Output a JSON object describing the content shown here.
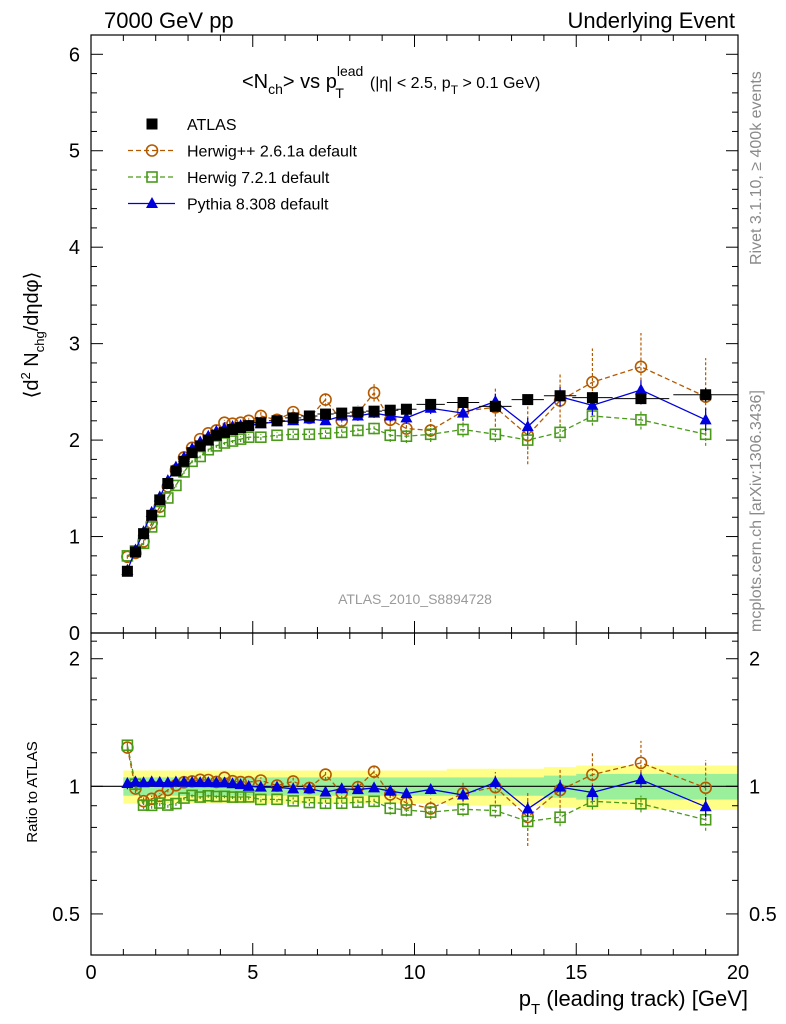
{
  "header": {
    "left": "7000 GeV pp",
    "right": "Underlying Event"
  },
  "side": {
    "rivet": "Rivet 3.1.10, ≥ 400k events",
    "mcplots": "mcplots.cern.ch [arXiv:1306.3436]"
  },
  "chart_data": {
    "type": "line",
    "title_parts": {
      "a": "<N",
      "a_sub": "ch",
      "b": "> vs p",
      "b_sup": "lead",
      "b_sub": "T",
      "cut1": "(|η| < 2.5, p",
      "cut_sub": "T",
      "cut2": " > 0.1 GeV)"
    },
    "analysis_tag": "ATLAS_2010_S8894728",
    "ylabel_parts": {
      "a": "⟨d",
      "sup": "2",
      "b": " N",
      "sub": "chg",
      "c": "/dηdφ⟩"
    },
    "ratio_ylabel": "Ratio to ATLAS",
    "xlabel_parts": {
      "a": "p",
      "sub": "T",
      "b": " (leading track) [GeV]"
    },
    "xlim": [
      0,
      20
    ],
    "ylim_main": [
      0,
      6.2
    ],
    "ylim_ratio": [
      0.4,
      2.3
    ],
    "x_ticks": [
      0,
      5,
      10,
      15,
      20
    ],
    "x_tick_labels": [
      "0",
      "5",
      "10",
      "15",
      "20"
    ],
    "y_main_ticks": [
      0,
      1,
      2,
      3,
      4,
      5,
      6
    ],
    "y_main_tick_labels": [
      "0",
      "1",
      "2",
      "3",
      "4",
      "5",
      "6"
    ],
    "y_ratio_ticks": [
      0.5,
      1,
      2
    ],
    "y_ratio_tick_labels": [
      "0.5",
      "1",
      "2"
    ],
    "legend_position": "top-left",
    "x": [
      1.125,
      1.375,
      1.625,
      1.875,
      2.125,
      2.375,
      2.625,
      2.875,
      3.125,
      3.375,
      3.625,
      3.875,
      4.125,
      4.375,
      4.625,
      4.875,
      5.25,
      5.75,
      6.25,
      6.75,
      7.25,
      7.75,
      8.25,
      8.75,
      9.25,
      9.75,
      10.5,
      11.5,
      12.5,
      13.5,
      14.5,
      15.5,
      17.0,
      19.0
    ],
    "series": [
      {
        "name": "ATLAS",
        "color": "#000000",
        "values": [
          0.64,
          0.84,
          1.03,
          1.22,
          1.38,
          1.55,
          1.68,
          1.78,
          1.87,
          1.94,
          2.0,
          2.05,
          2.08,
          2.11,
          2.13,
          2.15,
          2.18,
          2.2,
          2.23,
          2.25,
          2.27,
          2.28,
          2.29,
          2.3,
          2.31,
          2.32,
          2.37,
          2.39,
          2.35,
          2.42,
          2.46,
          2.44,
          2.43,
          2.47
        ],
        "errors": [
          0.02,
          0.02,
          0.02,
          0.02,
          0.02,
          0.02,
          0.02,
          0.02,
          0.02,
          0.02,
          0.02,
          0.02,
          0.02,
          0.02,
          0.02,
          0.02,
          0.02,
          0.02,
          0.02,
          0.02,
          0.02,
          0.03,
          0.03,
          0.03,
          0.03,
          0.03,
          0.03,
          0.04,
          0.04,
          0.05,
          0.05,
          0.06,
          0.06,
          0.07
        ]
      },
      {
        "name": "Herwig++ 2.6.1a default",
        "color": "#b35a00",
        "values": [
          0.79,
          0.83,
          0.95,
          1.14,
          1.31,
          1.52,
          1.69,
          1.82,
          1.92,
          2.01,
          2.07,
          2.1,
          2.18,
          2.17,
          2.18,
          2.2,
          2.25,
          2.21,
          2.29,
          2.23,
          2.42,
          2.2,
          2.28,
          2.49,
          2.21,
          2.12,
          2.1,
          2.3,
          2.34,
          2.05,
          2.41,
          2.6,
          2.76,
          2.45
        ],
        "errors": [
          0.02,
          0.02,
          0.02,
          0.02,
          0.02,
          0.02,
          0.02,
          0.02,
          0.02,
          0.02,
          0.02,
          0.03,
          0.03,
          0.03,
          0.03,
          0.03,
          0.04,
          0.04,
          0.05,
          0.05,
          0.07,
          0.07,
          0.08,
          0.09,
          0.1,
          0.1,
          0.12,
          0.15,
          0.2,
          0.3,
          0.28,
          0.35,
          0.35,
          0.4
        ]
      },
      {
        "name": "Herwig 7.2.1 default",
        "color": "#4a9a1a",
        "values": [
          0.8,
          0.85,
          0.93,
          1.1,
          1.26,
          1.4,
          1.53,
          1.67,
          1.78,
          1.83,
          1.9,
          1.94,
          1.97,
          1.99,
          2.01,
          2.03,
          2.03,
          2.05,
          2.06,
          2.06,
          2.07,
          2.08,
          2.1,
          2.12,
          2.05,
          2.04,
          2.06,
          2.11,
          2.06,
          2.0,
          2.08,
          2.25,
          2.21,
          2.06
        ],
        "errors": [
          0.02,
          0.02,
          0.02,
          0.02,
          0.02,
          0.02,
          0.02,
          0.02,
          0.02,
          0.02,
          0.02,
          0.02,
          0.02,
          0.02,
          0.03,
          0.03,
          0.03,
          0.03,
          0.04,
          0.04,
          0.05,
          0.05,
          0.06,
          0.06,
          0.07,
          0.07,
          0.07,
          0.08,
          0.08,
          0.1,
          0.1,
          0.1,
          0.1,
          0.12
        ]
      },
      {
        "name": "Pythia 8.308 default",
        "color": "#0000dd",
        "values": [
          0.65,
          0.86,
          1.05,
          1.25,
          1.41,
          1.58,
          1.72,
          1.82,
          1.91,
          1.98,
          2.04,
          2.09,
          2.12,
          2.14,
          2.15,
          2.15,
          2.17,
          2.19,
          2.2,
          2.22,
          2.2,
          2.25,
          2.25,
          2.28,
          2.25,
          2.23,
          2.33,
          2.28,
          2.4,
          2.14,
          2.45,
          2.36,
          2.52,
          2.21
        ],
        "errors": [
          0.02,
          0.02,
          0.02,
          0.02,
          0.02,
          0.02,
          0.02,
          0.02,
          0.02,
          0.02,
          0.02,
          0.02,
          0.02,
          0.02,
          0.03,
          0.03,
          0.03,
          0.03,
          0.04,
          0.04,
          0.04,
          0.05,
          0.05,
          0.05,
          0.06,
          0.06,
          0.06,
          0.08,
          0.08,
          0.09,
          0.1,
          0.1,
          0.1,
          0.12
        ]
      }
    ],
    "ratio_bands": {
      "inner_color": "#9af09a",
      "outer_color": "#ffff88",
      "inner": [
        0.05,
        0.05,
        0.05,
        0.05,
        0.05,
        0.05,
        0.05,
        0.05,
        0.05,
        0.05,
        0.05,
        0.05,
        0.05,
        0.05,
        0.05,
        0.05,
        0.05,
        0.05,
        0.05,
        0.05,
        0.05,
        0.05,
        0.05,
        0.05,
        0.05,
        0.05,
        0.05,
        0.05,
        0.05,
        0.05,
        0.06,
        0.07,
        0.07,
        0.07
      ],
      "outer": [
        0.09,
        0.09,
        0.09,
        0.09,
        0.09,
        0.09,
        0.09,
        0.09,
        0.09,
        0.09,
        0.09,
        0.09,
        0.09,
        0.09,
        0.09,
        0.09,
        0.09,
        0.09,
        0.09,
        0.09,
        0.09,
        0.09,
        0.09,
        0.09,
        0.09,
        0.09,
        0.09,
        0.1,
        0.1,
        0.1,
        0.11,
        0.12,
        0.12,
        0.12
      ]
    }
  }
}
